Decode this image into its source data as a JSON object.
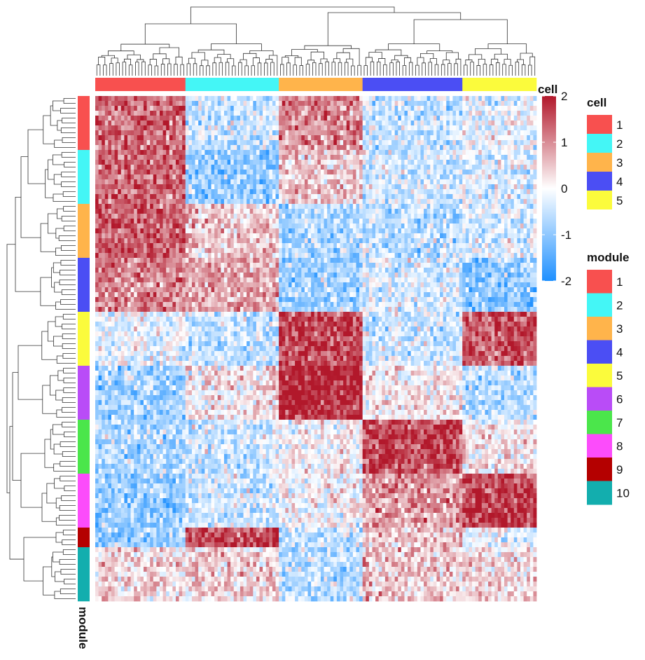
{
  "chart_data": {
    "type": "heatmap",
    "colorbar": {
      "title": "",
      "ticks": [
        2,
        1,
        0,
        -1,
        -2
      ],
      "min": -2,
      "max": 2,
      "colors": [
        "#1e90ff",
        "#ffffff",
        "#b2182b"
      ]
    },
    "column_annotation": {
      "name": "cell",
      "groups": [
        {
          "label": "1",
          "color": "#f8504f",
          "n_columns": 28
        },
        {
          "label": "2",
          "color": "#44f6f6",
          "n_columns": 29
        },
        {
          "label": "3",
          "color": "#ffb44b",
          "n_columns": 26
        },
        {
          "label": "4",
          "color": "#4b4ef4",
          "n_columns": 31
        },
        {
          "label": "5",
          "color": "#fbfb3c",
          "n_columns": 23
        }
      ]
    },
    "row_annotation": {
      "name": "module",
      "groups": [
        {
          "label": "1",
          "color": "#f8504f",
          "n_rows": 11
        },
        {
          "label": "2",
          "color": "#44f6f6",
          "n_rows": 11
        },
        {
          "label": "3",
          "color": "#ffb44b",
          "n_rows": 11
        },
        {
          "label": "4",
          "color": "#4b4ef4",
          "n_rows": 11
        },
        {
          "label": "5",
          "color": "#fbfb3c",
          "n_rows": 11
        },
        {
          "label": "6",
          "color": "#b94cf7",
          "n_rows": 11
        },
        {
          "label": "7",
          "color": "#4be64b",
          "n_rows": 11
        },
        {
          "label": "8",
          "color": "#fc4cfb",
          "n_rows": 11
        },
        {
          "label": "9",
          "color": "#b40000",
          "n_rows": 4
        },
        {
          "label": "10",
          "color": "#13aeae",
          "n_rows": 11
        }
      ]
    },
    "block_means": [
      [
        1.3,
        -0.5,
        1.0,
        -0.5,
        -0.15
      ],
      [
        1.3,
        -0.9,
        0.5,
        -0.4,
        -0.3
      ],
      [
        1.4,
        0.5,
        -0.7,
        -0.6,
        -0.3
      ],
      [
        1.1,
        0.8,
        -0.8,
        -0.3,
        -1.0
      ],
      [
        -0.2,
        -0.5,
        1.6,
        -0.4,
        1.5
      ],
      [
        -0.8,
        0.2,
        1.9,
        0.2,
        -0.6
      ],
      [
        -0.7,
        -0.4,
        0.05,
        1.6,
        0.2
      ],
      [
        -0.9,
        -0.4,
        0.0,
        0.9,
        1.6
      ],
      [
        -0.8,
        1.6,
        -0.5,
        0.5,
        -0.2
      ],
      [
        0.3,
        0.4,
        -0.6,
        0.5,
        0.3
      ]
    ]
  },
  "legend": {
    "cell_title": "cell",
    "module_title": "module",
    "cell_items": [
      "1",
      "2",
      "3",
      "4",
      "5"
    ],
    "module_items": [
      "1",
      "2",
      "3",
      "4",
      "5",
      "6",
      "7",
      "8",
      "9",
      "10"
    ]
  },
  "annotation_labels": {
    "top": "cell",
    "left": "module"
  }
}
